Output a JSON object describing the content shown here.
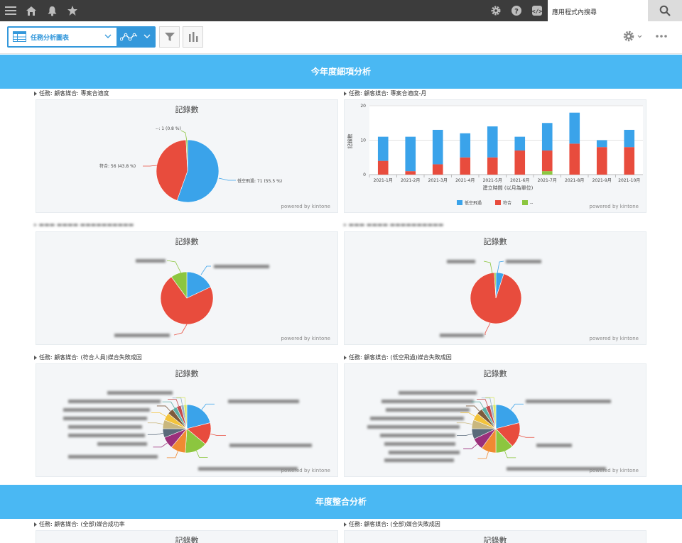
{
  "header": {
    "search_placeholder": "應用程式內搜尋",
    "icons": [
      "menu-icon",
      "home-icon",
      "bell-icon",
      "star-icon",
      "gear-icon",
      "help-icon",
      "code-icon",
      "search-icon"
    ]
  },
  "toolbar": {
    "view_label": "任務分析圖表",
    "icons": [
      "table-icon",
      "chevron-down-icon",
      "line-chart-icon",
      "chevron-down-icon",
      "filter-icon",
      "bar-chart-icon",
      "gear-icon",
      "more-icon"
    ]
  },
  "section1_title": "今年度細項分析",
  "section2_title": "年度整合分析",
  "charts": [
    {
      "title": "任務: 顧客媒合: 專案合適度",
      "card_title": "記錄數",
      "powered": "powered by kintone",
      "chart_data": {
        "type": "pie",
        "labels": [
          "低空飛過: 71 (55.5 %)",
          "符合: 56 (43.8 %)",
          "--: 1 (0.8 %)"
        ],
        "series": [
          {
            "values": [
              71,
              56,
              1
            ]
          }
        ],
        "colors": [
          "#3aa3ea",
          "#e84c3d",
          "#8cc63f"
        ]
      }
    },
    {
      "title": "任務: 顧客媒合: 專案合適度-月",
      "card_title": "",
      "powered": "powered by kintone",
      "chart_data": {
        "type": "bar",
        "stacked": true,
        "categories": [
          "2021-1月",
          "2021-2月",
          "2021-3月",
          "2021-4月",
          "2021-5月",
          "2021-6月",
          "2021-7月",
          "2021-8月",
          "2021-9月",
          "2021-10月"
        ],
        "series": [
          {
            "name": "低空飛過",
            "values": [
              7,
              10,
              10,
              7,
              9,
              4,
              8,
              9,
              2,
              5
            ],
            "color": "#3aa3ea"
          },
          {
            "name": "符合",
            "values": [
              4,
              1,
              3,
              5,
              5,
              7,
              6,
              9,
              8,
              8
            ],
            "color": "#e84c3d"
          },
          {
            "name": "--",
            "values": [
              0,
              0,
              0,
              0,
              0,
              0,
              1,
              0,
              0,
              0
            ],
            "color": "#8cc63f"
          }
        ],
        "ylim": [
          0,
          20
        ],
        "yticks": [
          "0",
          "10",
          "20"
        ],
        "xlabel": "建立時間 (以月為單位)",
        "ylabel": "記錄數",
        "legend": "bottom"
      }
    },
    {
      "title": "",
      "card_title": "記錄數",
      "powered": "powered by kintone",
      "chart_data": {
        "type": "pie",
        "series": [
          {
            "values": [
              18,
              72,
              10
            ]
          }
        ],
        "colors": [
          "#3aa3ea",
          "#e84c3d",
          "#8cc63f"
        ]
      }
    },
    {
      "title": "",
      "card_title": "記錄數",
      "powered": "powered by kintone",
      "chart_data": {
        "type": "pie",
        "series": [
          {
            "values": [
              5,
              94,
              1
            ]
          }
        ],
        "colors": [
          "#3aa3ea",
          "#e84c3d",
          "#8cc63f"
        ]
      }
    },
    {
      "title": "任務: 顧客媒合: (符合人員)媒合失敗成因",
      "card_title": "記錄數",
      "powered": "powered by kintone",
      "chart_data": {
        "type": "pie",
        "series": [
          {
            "values": [
              21,
              15,
              15,
              10,
              8,
              6,
              6,
              5,
              4,
              3,
              3,
              2,
              2
            ]
          }
        ],
        "colors": [
          "#3aa3ea",
          "#e84c3d",
          "#8cc63f",
          "#f08a32",
          "#9b2f7b",
          "#5a6a7a",
          "#c9b77e",
          "#f3c33a",
          "#7d5b3d",
          "#5fb0a6",
          "#c44d4d",
          "#9ab3c9",
          "#d9e86d"
        ]
      }
    },
    {
      "title": "任務: 顧客媒合: (低空飛過)媒合失敗成因",
      "card_title": "記錄數",
      "powered": "powered by kintone",
      "chart_data": {
        "type": "pie",
        "series": [
          {
            "values": [
              21,
              17,
              12,
              10,
              8,
              7,
              6,
              5,
              4,
              3,
              3,
              2,
              2
            ]
          }
        ],
        "colors": [
          "#3aa3ea",
          "#e84c3d",
          "#8cc63f",
          "#f08a32",
          "#9b2f7b",
          "#5a6a7a",
          "#c9b77e",
          "#f3c33a",
          "#7d5b3d",
          "#5fb0a6",
          "#c44d4d",
          "#9ab3c9",
          "#d9e86d"
        ]
      }
    },
    {
      "title": "任務: 顧客媒合: (全部)媒合成功率",
      "card_title": "記錄數",
      "powered": "",
      "chart_data": {
        "type": "pie",
        "series": [
          {
            "values": []
          }
        ]
      }
    },
    {
      "title": "任務: 顧客媒合: (全部)媒合失敗成因",
      "card_title": "記錄數",
      "powered": "",
      "chart_data": {
        "type": "pie",
        "series": [
          {
            "values": []
          }
        ]
      }
    }
  ]
}
